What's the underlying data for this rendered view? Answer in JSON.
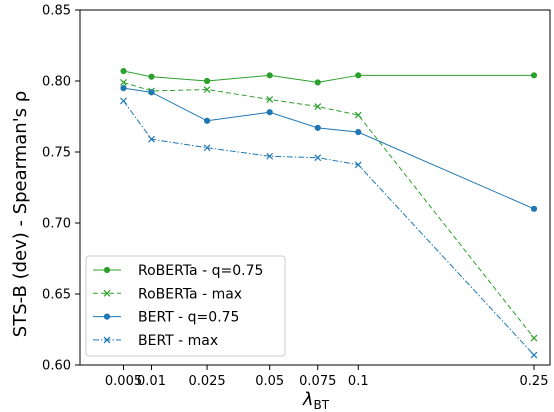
{
  "chart_data": {
    "type": "line",
    "xlabel": "λ",
    "xlabel_sub": "BT",
    "ylabel": "STS-B (dev) - Spearman's ρ",
    "x": [
      0.005,
      0.01,
      0.025,
      0.05,
      0.075,
      0.1,
      0.25
    ],
    "x_tick_labels": [
      "0.005",
      "0.01",
      "0.025",
      "0.05",
      "0.075",
      "0.1",
      "0.25"
    ],
    "y_ticks": [
      "0.60",
      "0.65",
      "0.70",
      "0.75",
      "0.80",
      "0.85"
    ],
    "ylim": [
      0.6,
      0.85
    ],
    "grid": false,
    "legend_position": "lower-left",
    "series": [
      {
        "name": "RoBERTa - q=0.75",
        "color": "#2ca02c",
        "linestyle": "solid",
        "marker": "dot",
        "values": [
          0.807,
          0.803,
          0.8,
          0.804,
          0.799,
          0.804,
          0.804
        ]
      },
      {
        "name": "RoBERTa - max",
        "color": "#2ca02c",
        "linestyle": "dashed",
        "marker": "x",
        "values": [
          0.799,
          0.793,
          0.794,
          0.787,
          0.782,
          0.776,
          0.619
        ]
      },
      {
        "name": "BERT - q=0.75",
        "color": "#1f77b4",
        "linestyle": "solid",
        "marker": "dot",
        "values": [
          0.795,
          0.792,
          0.772,
          0.778,
          0.767,
          0.764,
          0.71
        ]
      },
      {
        "name": "BERT - max",
        "color": "#1f77b4",
        "linestyle": "dashdot",
        "marker": "x",
        "values": [
          0.786,
          0.759,
          0.753,
          0.747,
          0.746,
          0.741,
          0.607
        ]
      }
    ]
  }
}
